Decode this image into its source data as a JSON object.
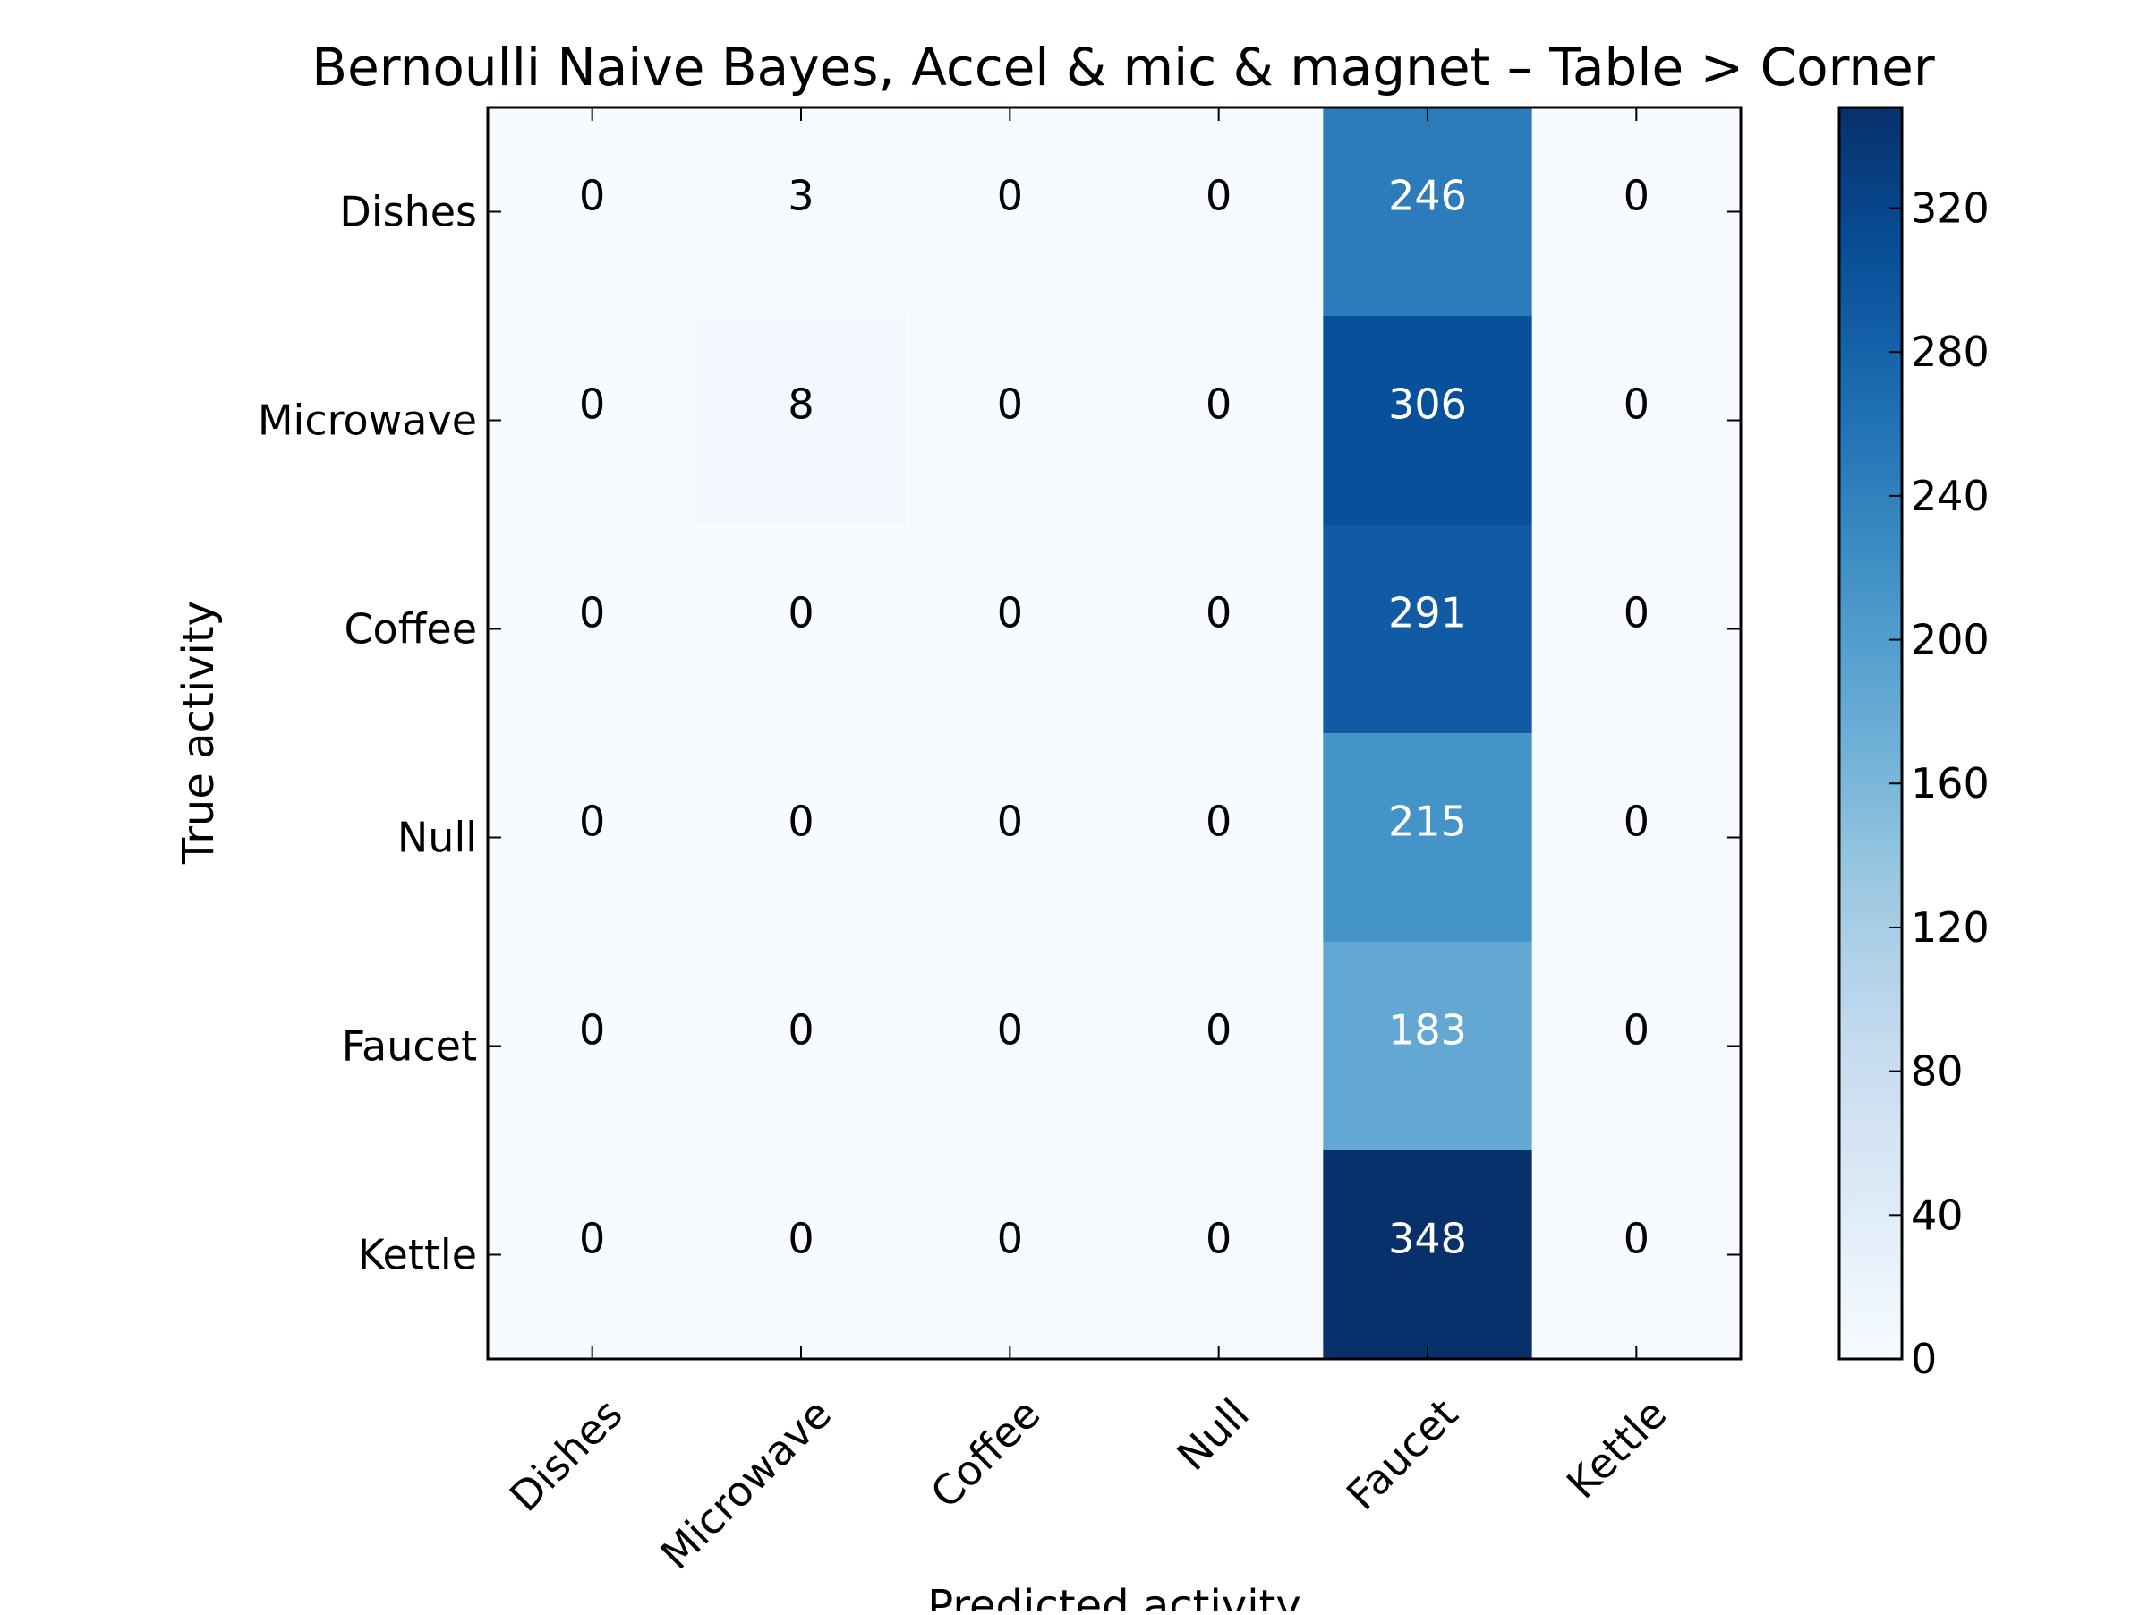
{
  "chart_data": {
    "type": "heatmap",
    "title": "Bernoulli Naive Bayes, Accel & mic & magnet – Table > Corner",
    "xlabel": "Predicted activity",
    "ylabel": "True activity",
    "x_categories": [
      "Dishes",
      "Microwave",
      "Coffee",
      "Null",
      "Faucet",
      "Kettle"
    ],
    "y_categories": [
      "Dishes",
      "Microwave",
      "Coffee",
      "Null",
      "Faucet",
      "Kettle"
    ],
    "values": [
      [
        0,
        3,
        0,
        0,
        246,
        0
      ],
      [
        0,
        8,
        0,
        0,
        306,
        0
      ],
      [
        0,
        0,
        0,
        0,
        291,
        0
      ],
      [
        0,
        0,
        0,
        0,
        215,
        0
      ],
      [
        0,
        0,
        0,
        0,
        183,
        0
      ],
      [
        0,
        0,
        0,
        0,
        348,
        0
      ]
    ],
    "colormap": "Blues",
    "colorbar": {
      "range": [
        0,
        348
      ],
      "ticks": [
        0,
        40,
        80,
        120,
        160,
        200,
        240,
        280,
        320
      ]
    },
    "colors": {
      "low": "#f7fbff",
      "high": "#08306b",
      "text_light": "#ffffff",
      "text_dark": "#000000"
    }
  }
}
